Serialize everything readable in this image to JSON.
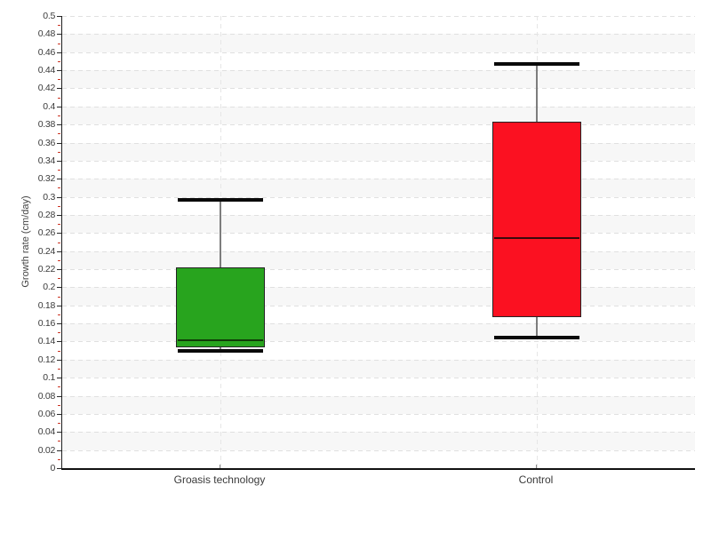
{
  "chart_data": {
    "type": "boxplot",
    "title": "",
    "xlabel": "",
    "ylabel": "Growth rate (cm/day)",
    "ylim": [
      0,
      0.5
    ],
    "y_tick_step": 0.02,
    "y_minor_tick_step": 0.01,
    "y_tick_labels": [
      "0",
      "0.02",
      "0.04",
      "0.06",
      "0.08",
      "0.1",
      "0.12",
      "0.14",
      "0.16",
      "0.18",
      "0.2",
      "0.22",
      "0.24",
      "0.26",
      "0.28",
      "0.3",
      "0.32",
      "0.34",
      "0.36",
      "0.38",
      "0.4",
      "0.42",
      "0.44",
      "0.46",
      "0.48",
      "0.5"
    ],
    "grid": {
      "horizontal_dashed": true,
      "vertical_dashed_at_categories": true,
      "alternating_bands": true
    },
    "legend": "none",
    "categories": [
      "Groasis technology",
      "Control"
    ],
    "series": [
      {
        "name": "Groasis technology",
        "box_color": "#28a41e",
        "median_color": "#113a08",
        "whisker_low": 0.13,
        "q1": 0.134,
        "median": 0.141,
        "q3": 0.222,
        "whisker_high": 0.297
      },
      {
        "name": "Control",
        "box_color": "#fb1121",
        "median_color": "#3a0a0c",
        "whisker_low": 0.144,
        "q1": 0.167,
        "median": 0.254,
        "q3": 0.383,
        "whisker_high": 0.447
      }
    ]
  },
  "colors": {
    "background": "#ffffff",
    "band_gray": "#f7f7f7",
    "hgrid_dash": "#e0e0e0",
    "vgrid_dash": "#e6e6e6",
    "axis": "#1f1f1f",
    "tick_label": "#3a3a3a",
    "minor_tick_red": "#cc3322",
    "whisker_cap": "#0a0a0a",
    "whisker_stem": "#7d7d7d"
  }
}
